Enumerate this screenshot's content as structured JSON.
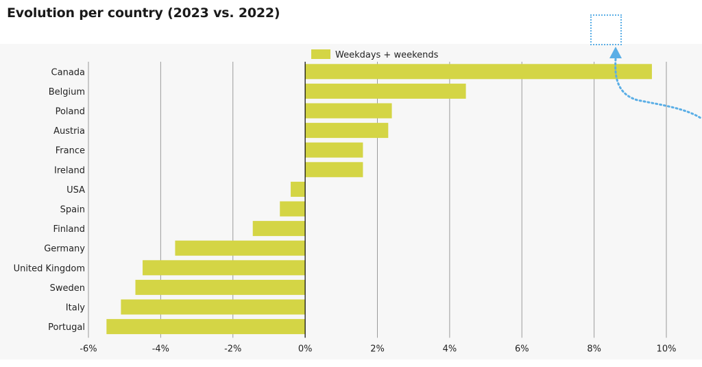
{
  "page": {
    "title": "Evolution per country (2023 vs. 2022)"
  },
  "chart_data": {
    "type": "bar",
    "orientation": "horizontal",
    "title": "Evolution per country (2023 vs. 2022)",
    "categories": [
      "Canada",
      "Belgium",
      "Poland",
      "Austria",
      "France",
      "Ireland",
      "USA",
      "Spain",
      "Finland",
      "Germany",
      "United Kingdom",
      "Sweden",
      "Italy",
      "Portugal"
    ],
    "series": [
      {
        "name": "Weekdays + weekends",
        "values": [
          9.6,
          4.45,
          2.4,
          2.3,
          1.6,
          1.6,
          -0.4,
          -0.7,
          -1.45,
          -3.6,
          -4.5,
          -4.7,
          -5.1,
          -5.5
        ],
        "color": "#d4d545"
      }
    ],
    "xlim": [
      -6,
      10
    ],
    "xticks": [
      -6,
      -4,
      -2,
      0,
      2,
      4,
      6,
      8,
      10
    ],
    "xtick_labels": [
      "-6%",
      "-4%",
      "-2%",
      "0%",
      "2%",
      "4%",
      "6%",
      "8%",
      "10%"
    ],
    "xlabel": "",
    "ylabel": "",
    "grid": "vertical",
    "legend": "top-center",
    "colors": {
      "bar": "#d4d545",
      "grid": "#9a9a9a",
      "zero_line": "#000000",
      "annotation": "#5aaee6",
      "background": "#f7f7f7"
    }
  }
}
